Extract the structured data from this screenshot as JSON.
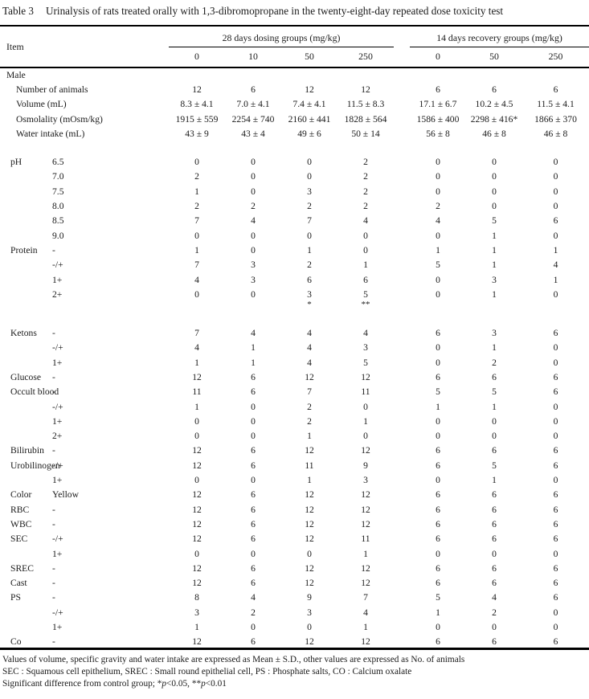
{
  "page": {
    "table_label": "Table 3",
    "caption": "Urinalysis of rats treated orally with 1,3-dibromopropane in the twenty-eight-day repeated dose toxicity test"
  },
  "table": {
    "item_header": "Item",
    "groups": [
      {
        "label": "28 days dosing groups (mg/kg)",
        "doses": [
          "0",
          "10",
          "50",
          "250"
        ]
      },
      {
        "label": "14 days recovery groups (mg/kg)",
        "doses": [
          "0",
          "50",
          "250"
        ]
      }
    ],
    "rows": [
      {
        "kind": "section",
        "item": "Male",
        "grade": "",
        "ind": 0
      },
      {
        "item": "Number of animals",
        "grade": "",
        "ind": 2,
        "values": [
          "12",
          "6",
          "12",
          "12",
          "6",
          "6",
          "6"
        ]
      },
      {
        "item": "Volume (mL)",
        "grade": "",
        "ind": 2,
        "values": [
          "8.3 ± 4.1",
          "7.0 ± 4.1",
          "7.4 ± 4.1",
          "11.5 ± 8.3",
          "17.1 ± 6.7",
          "10.2 ± 4.5",
          "11.5 ± 4.1"
        ]
      },
      {
        "item": "Osmolality (mOsm/kg)",
        "grade": "",
        "ind": 2,
        "values": [
          "1915 ± 559",
          "2254 ± 740",
          "2160 ± 441",
          "1828 ± 564",
          "1586 ± 400",
          "2298 ± 416*",
          "1866 ± 370"
        ]
      },
      {
        "item": "Water intake (mL)",
        "grade": "",
        "ind": 2,
        "values": [
          "43 ± 9",
          "43 ± 4",
          "49 ± 6",
          "50 ± 14",
          "56 ± 8",
          "46 ± 8",
          "46 ± 8"
        ]
      },
      {
        "kind": "spacer"
      },
      {
        "item": "pH",
        "grade": "6.5",
        "ind": 1,
        "values": [
          "0",
          "0",
          "0",
          "2",
          "0",
          "0",
          "0"
        ]
      },
      {
        "item": "",
        "grade": "7.0",
        "ind": 1,
        "values": [
          "2",
          "0",
          "0",
          "2",
          "0",
          "0",
          "0"
        ]
      },
      {
        "item": "",
        "grade": "7.5",
        "ind": 1,
        "values": [
          "1",
          "0",
          "3",
          "2",
          "0",
          "0",
          "0"
        ]
      },
      {
        "item": "",
        "grade": "8.0",
        "ind": 1,
        "values": [
          "2",
          "2",
          "2",
          "2",
          "2",
          "0",
          "0"
        ]
      },
      {
        "item": "",
        "grade": "8.5",
        "ind": 1,
        "values": [
          "7",
          "4",
          "7",
          "4",
          "4",
          "5",
          "6"
        ]
      },
      {
        "item": "",
        "grade": "9.0",
        "ind": 1,
        "values": [
          "0",
          "0",
          "0",
          "0",
          "0",
          "1",
          "0"
        ]
      },
      {
        "item": "Protein",
        "grade": "-",
        "ind": 1,
        "values": [
          "1",
          "0",
          "1",
          "0",
          "1",
          "1",
          "1"
        ]
      },
      {
        "item": "",
        "grade": "-/+",
        "ind": 1,
        "values": [
          "7",
          "3",
          "2",
          "1",
          "5",
          "1",
          "4"
        ]
      },
      {
        "item": "",
        "grade": "1+",
        "ind": 1,
        "values": [
          "4",
          "3",
          "6",
          "6",
          "0",
          "3",
          "1"
        ]
      },
      {
        "item": "",
        "grade": "2+",
        "ind": 1,
        "values": [
          "0",
          "0",
          "3",
          "5",
          "0",
          "1",
          "0"
        ]
      },
      {
        "kind": "marks",
        "item": "",
        "grade": "",
        "ind": 1,
        "values": [
          "",
          "",
          "*",
          "**",
          "",
          "",
          ""
        ]
      },
      {
        "kind": "spacer"
      },
      {
        "item": "Ketons",
        "grade": "-",
        "ind": 1,
        "values": [
          "7",
          "4",
          "4",
          "4",
          "6",
          "3",
          "6"
        ]
      },
      {
        "item": "",
        "grade": "-/+",
        "ind": 1,
        "values": [
          "4",
          "1",
          "4",
          "3",
          "0",
          "1",
          "0"
        ]
      },
      {
        "item": "",
        "grade": "1+",
        "ind": 1,
        "values": [
          "1",
          "1",
          "4",
          "5",
          "0",
          "2",
          "0"
        ]
      },
      {
        "item": "Glucose",
        "grade": "-",
        "ind": 1,
        "values": [
          "12",
          "6",
          "12",
          "12",
          "6",
          "6",
          "6"
        ]
      },
      {
        "item": "Occult blood",
        "grade": "-",
        "ind": 1,
        "values": [
          "11",
          "6",
          "7",
          "11",
          "5",
          "5",
          "6"
        ]
      },
      {
        "item": "",
        "grade": "-/+",
        "ind": 1,
        "values": [
          "1",
          "0",
          "2",
          "0",
          "1",
          "1",
          "0"
        ]
      },
      {
        "item": "",
        "grade": "1+",
        "ind": 1,
        "values": [
          "0",
          "0",
          "2",
          "1",
          "0",
          "0",
          "0"
        ]
      },
      {
        "item": "",
        "grade": "2+",
        "ind": 1,
        "values": [
          "0",
          "0",
          "1",
          "0",
          "0",
          "0",
          "0"
        ]
      },
      {
        "item": "Bilirubin",
        "grade": "-",
        "ind": 1,
        "values": [
          "12",
          "6",
          "12",
          "12",
          "6",
          "6",
          "6"
        ]
      },
      {
        "item": "Urobilinogen",
        "grade": "-/+",
        "ind": 1,
        "values": [
          "12",
          "6",
          "11",
          "9",
          "6",
          "5",
          "6"
        ]
      },
      {
        "item": "",
        "grade": "1+",
        "ind": 1,
        "values": [
          "0",
          "0",
          "1",
          "3",
          "0",
          "1",
          "0"
        ]
      },
      {
        "item": "Color",
        "grade": "Yellow",
        "ind": 1,
        "values": [
          "12",
          "6",
          "12",
          "12",
          "6",
          "6",
          "6"
        ]
      },
      {
        "item": "RBC",
        "grade": "-",
        "ind": 1,
        "values": [
          "12",
          "6",
          "12",
          "12",
          "6",
          "6",
          "6"
        ]
      },
      {
        "item": "WBC",
        "grade": "-",
        "ind": 1,
        "values": [
          "12",
          "6",
          "12",
          "12",
          "6",
          "6",
          "6"
        ]
      },
      {
        "item": "SEC",
        "grade": "-/+",
        "ind": 1,
        "values": [
          "12",
          "6",
          "12",
          "11",
          "6",
          "6",
          "6"
        ]
      },
      {
        "item": "",
        "grade": "1+",
        "ind": 1,
        "values": [
          "0",
          "0",
          "0",
          "1",
          "0",
          "0",
          "0"
        ]
      },
      {
        "item": "SREC",
        "grade": "-",
        "ind": 1,
        "values": [
          "12",
          "6",
          "12",
          "12",
          "6",
          "6",
          "6"
        ]
      },
      {
        "item": "Cast",
        "grade": "-",
        "ind": 1,
        "values": [
          "12",
          "6",
          "12",
          "12",
          "6",
          "6",
          "6"
        ]
      },
      {
        "item": "PS",
        "grade": "-",
        "ind": 1,
        "values": [
          "8",
          "4",
          "9",
          "7",
          "5",
          "4",
          "6"
        ]
      },
      {
        "item": "",
        "grade": "-/+",
        "ind": 1,
        "values": [
          "3",
          "2",
          "3",
          "4",
          "1",
          "2",
          "0"
        ]
      },
      {
        "item": "",
        "grade": "1+",
        "ind": 1,
        "values": [
          "1",
          "0",
          "0",
          "1",
          "0",
          "0",
          "0"
        ]
      },
      {
        "item": "Co",
        "grade": "-",
        "ind": 1,
        "values": [
          "12",
          "6",
          "12",
          "12",
          "6",
          "6",
          "6"
        ]
      }
    ]
  },
  "footnotes": {
    "line1": "Values of volume, specific gravity and water intake are expressed as Mean ± S.D., other values are expressed as No. of animals",
    "line2": "SEC : Squamous cell epithelium, SREC : Small round epithelial cell, PS : Phosphate salts, CO : Calcium oxalate",
    "significance": {
      "pre": "Significant difference from control group; *",
      "p1": "p",
      "mid": "<0.05, **",
      "p2": "p",
      "post": "<0.01"
    }
  }
}
